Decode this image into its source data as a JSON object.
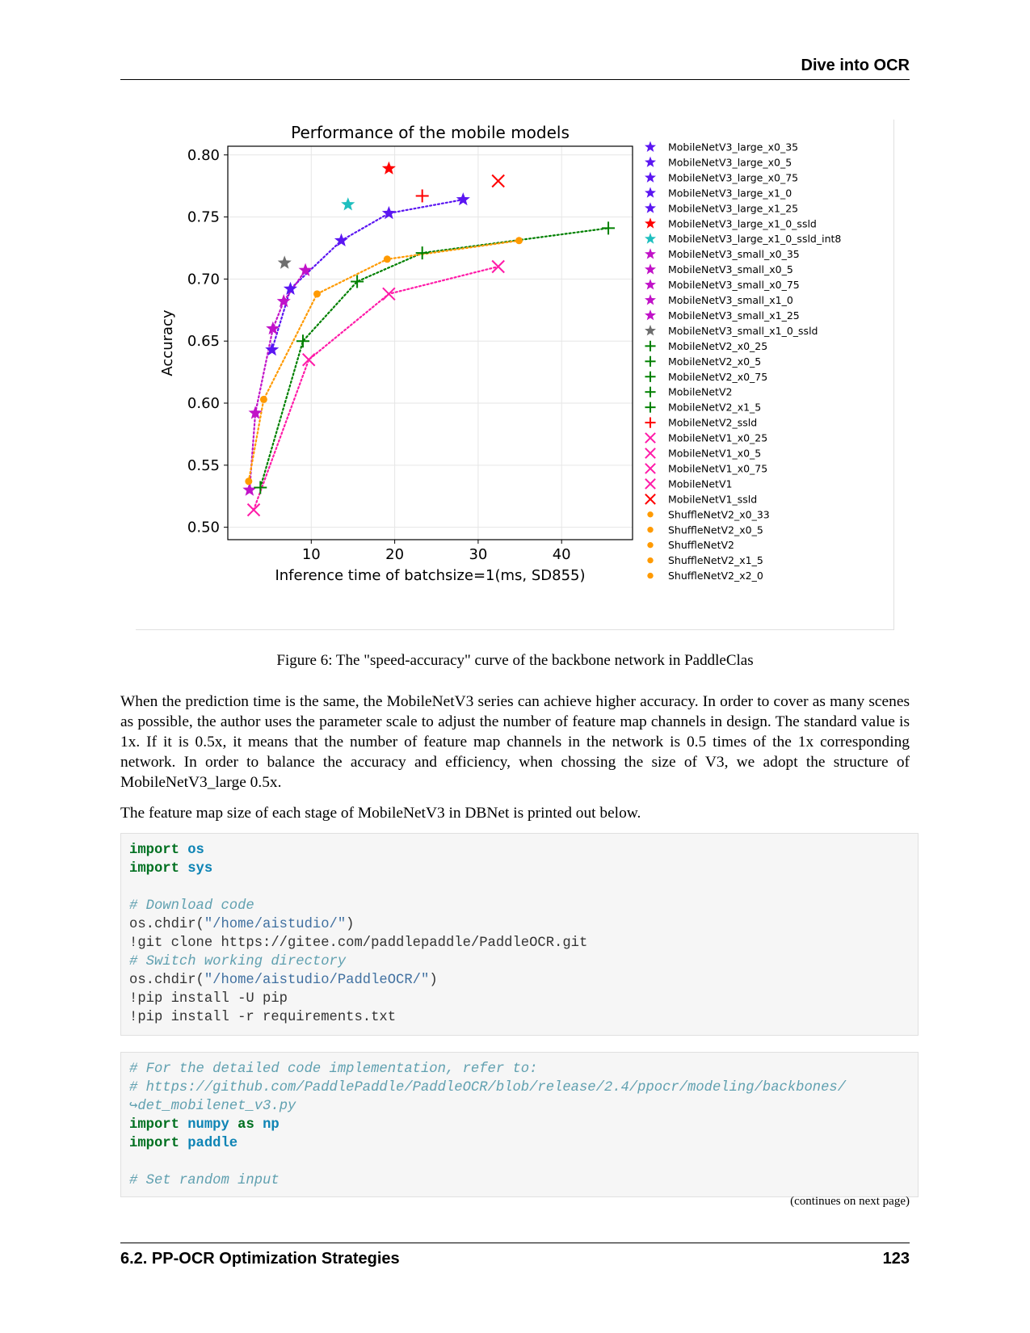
{
  "header": {
    "title": "Dive into OCR"
  },
  "chart_data": {
    "type": "scatter",
    "title": "Performance of the mobile models",
    "xlabel": "Inference time of batchsize=1(ms, SD855)",
    "ylabel": "Accuracy",
    "xlim": [
      0,
      48.5
    ],
    "ylim": [
      0.49,
      0.807
    ],
    "xticks": [
      10,
      20,
      30,
      40
    ],
    "yticks": [
      0.5,
      0.55,
      0.6,
      0.65,
      0.7,
      0.75,
      0.8
    ],
    "ytick_labels": [
      "0.50",
      "0.55",
      "0.60",
      "0.65",
      "0.70",
      "0.75",
      "0.80"
    ],
    "grid": true,
    "legend_position": "right, outside plot",
    "series": [
      {
        "name": "MobileNetV3_large_x0_35",
        "marker": "star",
        "color": "#5b16f2",
        "points": [
          [
            5.3,
            0.643
          ]
        ]
      },
      {
        "name": "MobileNetV3_large_x0_5",
        "marker": "star",
        "color": "#5b16f2",
        "points": [
          [
            7.5,
            0.692
          ]
        ]
      },
      {
        "name": "MobileNetV3_large_x0_75",
        "marker": "star",
        "color": "#5b16f2",
        "points": [
          [
            13.6,
            0.731
          ]
        ]
      },
      {
        "name": "MobileNetV3_large_x1_0",
        "marker": "star",
        "color": "#5b16f2",
        "points": [
          [
            19.3,
            0.753
          ]
        ]
      },
      {
        "name": "MobileNetV3_large_x1_25",
        "marker": "star",
        "color": "#5b16f2",
        "points": [
          [
            28.2,
            0.764
          ]
        ]
      },
      {
        "name": "MobileNetV3_large_x1_0_ssld",
        "marker": "star",
        "color": "#ff0000",
        "points": [
          [
            19.3,
            0.789
          ]
        ]
      },
      {
        "name": "MobileNetV3_large_x1_0_ssld_int8",
        "marker": "star",
        "color": "#1fbfbf",
        "points": [
          [
            14.4,
            0.76
          ]
        ]
      },
      {
        "name": "MobileNetV3_small_x0_35",
        "marker": "star",
        "color": "#c112c8",
        "points": [
          [
            2.6,
            0.53
          ]
        ]
      },
      {
        "name": "MobileNetV3_small_x0_5",
        "marker": "star",
        "color": "#c112c8",
        "points": [
          [
            3.3,
            0.592
          ]
        ]
      },
      {
        "name": "MobileNetV3_small_x0_75",
        "marker": "star",
        "color": "#c112c8",
        "points": [
          [
            5.4,
            0.66
          ]
        ]
      },
      {
        "name": "MobileNetV3_small_x1_0",
        "marker": "star",
        "color": "#c112c8",
        "points": [
          [
            6.7,
            0.682
          ]
        ]
      },
      {
        "name": "MobileNetV3_small_x1_25",
        "marker": "star",
        "color": "#c112c8",
        "points": [
          [
            9.3,
            0.707
          ]
        ]
      },
      {
        "name": "MobileNetV3_small_x1_0_ssld",
        "marker": "star",
        "color": "#6e6e6e",
        "points": [
          [
            6.8,
            0.713
          ]
        ]
      },
      {
        "name": "MobileNetV2_x0_25",
        "marker": "plus",
        "color": "#008000",
        "points": [
          [
            3.9,
            0.532
          ]
        ]
      },
      {
        "name": "MobileNetV2_x0_5",
        "marker": "plus",
        "color": "#008000",
        "points": [
          [
            9.0,
            0.65
          ]
        ]
      },
      {
        "name": "MobileNetV2_x0_75",
        "marker": "plus",
        "color": "#008000",
        "points": [
          [
            15.5,
            0.698
          ]
        ]
      },
      {
        "name": "MobileNetV2",
        "marker": "plus",
        "color": "#008000",
        "points": [
          [
            23.3,
            0.721
          ]
        ]
      },
      {
        "name": "MobileNetV2_x1_5",
        "marker": "plus",
        "color": "#008000",
        "points": [
          [
            45.6,
            0.741
          ]
        ]
      },
      {
        "name": "MobileNetV2_ssld",
        "marker": "plus",
        "color": "#ff0000",
        "points": [
          [
            23.3,
            0.767
          ]
        ]
      },
      {
        "name": "MobileNetV1_x0_25",
        "marker": "x",
        "color": "#ff1aa8",
        "points": [
          [
            3.1,
            0.514
          ]
        ]
      },
      {
        "name": "MobileNetV1_x0_5",
        "marker": "x",
        "color": "#ff1aa8",
        "points": [
          [
            9.7,
            0.635
          ]
        ]
      },
      {
        "name": "MobileNetV1_x0_75",
        "marker": "x",
        "color": "#ff1aa8",
        "points": [
          [
            19.3,
            0.688
          ]
        ]
      },
      {
        "name": "MobileNetV1",
        "marker": "x",
        "color": "#ff1aa8",
        "points": [
          [
            32.4,
            0.71
          ]
        ]
      },
      {
        "name": "MobileNetV1_ssld",
        "marker": "x",
        "color": "#ff0000",
        "points": [
          [
            32.4,
            0.779
          ]
        ]
      },
      {
        "name": "ShuffleNetV2_x0_33",
        "marker": "circle",
        "color": "#ff9a00",
        "points": [
          [
            2.5,
            0.537
          ]
        ]
      },
      {
        "name": "ShuffleNetV2_x0_5",
        "marker": "circle",
        "color": "#ff9a00",
        "points": [
          [
            4.3,
            0.603
          ]
        ]
      },
      {
        "name": "ShuffleNetV2",
        "marker": "circle",
        "color": "#ff9a00",
        "points": [
          [
            10.7,
            0.688
          ]
        ]
      },
      {
        "name": "ShuffleNetV2_x1_5",
        "marker": "circle",
        "color": "#ff9a00",
        "points": [
          [
            19.1,
            0.716
          ]
        ]
      },
      {
        "name": "ShuffleNetV2_x2_0",
        "marker": "circle",
        "color": "#ff9a00",
        "points": [
          [
            34.9,
            0.731
          ]
        ]
      }
    ],
    "curves": [
      {
        "color": "#5b16f2",
        "points": [
          [
            5.3,
            0.643
          ],
          [
            7.5,
            0.692
          ],
          [
            13.6,
            0.731
          ],
          [
            19.3,
            0.753
          ],
          [
            28.2,
            0.764
          ]
        ]
      },
      {
        "color": "#c112c8",
        "points": [
          [
            2.6,
            0.53
          ],
          [
            3.3,
            0.592
          ],
          [
            5.4,
            0.66
          ],
          [
            6.7,
            0.682
          ],
          [
            9.3,
            0.707
          ]
        ]
      },
      {
        "color": "#008000",
        "points": [
          [
            3.9,
            0.532
          ],
          [
            9.0,
            0.65
          ],
          [
            15.5,
            0.698
          ],
          [
            23.3,
            0.721
          ],
          [
            45.6,
            0.741
          ]
        ]
      },
      {
        "color": "#ff1aa8",
        "points": [
          [
            3.1,
            0.514
          ],
          [
            9.7,
            0.635
          ],
          [
            19.3,
            0.688
          ],
          [
            32.4,
            0.71
          ]
        ]
      },
      {
        "color": "#ff9a00",
        "points": [
          [
            2.5,
            0.537
          ],
          [
            4.3,
            0.603
          ],
          [
            10.7,
            0.688
          ],
          [
            19.1,
            0.716
          ],
          [
            34.9,
            0.731
          ]
        ]
      }
    ]
  },
  "caption": "Figure 6: The \"speed-accuracy\" curve of the backbone network in PaddleClas",
  "paragraphs": [
    "When the prediction time is the same, the MobileNetV3 series can achieve higher accuracy. In order to cover as many scenes as possible, the author uses the parameter scale to adjust the number of feature map channels in design. The standard value is 1x. If it is 0.5x, it means that the number of feature map channels in the network is 0.5 times of the 1x corresponding network. In order to balance the accuracy and efficiency, when chossing the size of V3, we adopt the structure of MobileNetV3_large 0.5x.",
    "The feature map size of each stage of MobileNetV3 in DBNet is printed out below."
  ],
  "code1": {
    "import1_kw": "import",
    "import1_mod": "os",
    "import2_kw": "import",
    "import2_mod": "sys",
    "comment1": "# Download code",
    "chdir1_pre": "os.chdir(",
    "chdir1_str": "\"/home/aistudio/\"",
    "chdir1_post": ")",
    "git": "!git clone https://gitee.com/paddlepaddle/PaddleOCR.git",
    "comment2": "# Switch working directory",
    "chdir2_pre": "os.chdir(",
    "chdir2_str": "\"/home/aistudio/PaddleOCR/\"",
    "chdir2_post": ")",
    "pip1": "!pip install -U pip",
    "pip2": "!pip install -r requirements.txt"
  },
  "code2": {
    "comment1": "# For the detailed code implementation, refer to:",
    "comment2": "# https://github.com/PaddlePaddle/PaddleOCR/blob/release/2.4/ppocr/modeling/backbones/",
    "comment2_cont": "↪det_mobilenet_v3.py",
    "import1_kw": "import",
    "import1_mod": "numpy",
    "import1_as": "as",
    "import1_alias": "np",
    "import2_kw": "import",
    "import2_mod": "paddle",
    "comment3": "# Set random input"
  },
  "continues_note": "(continues on next page)",
  "footer": {
    "section": "6.2.  PP-OCR Optimization Strategies",
    "page": "123"
  }
}
